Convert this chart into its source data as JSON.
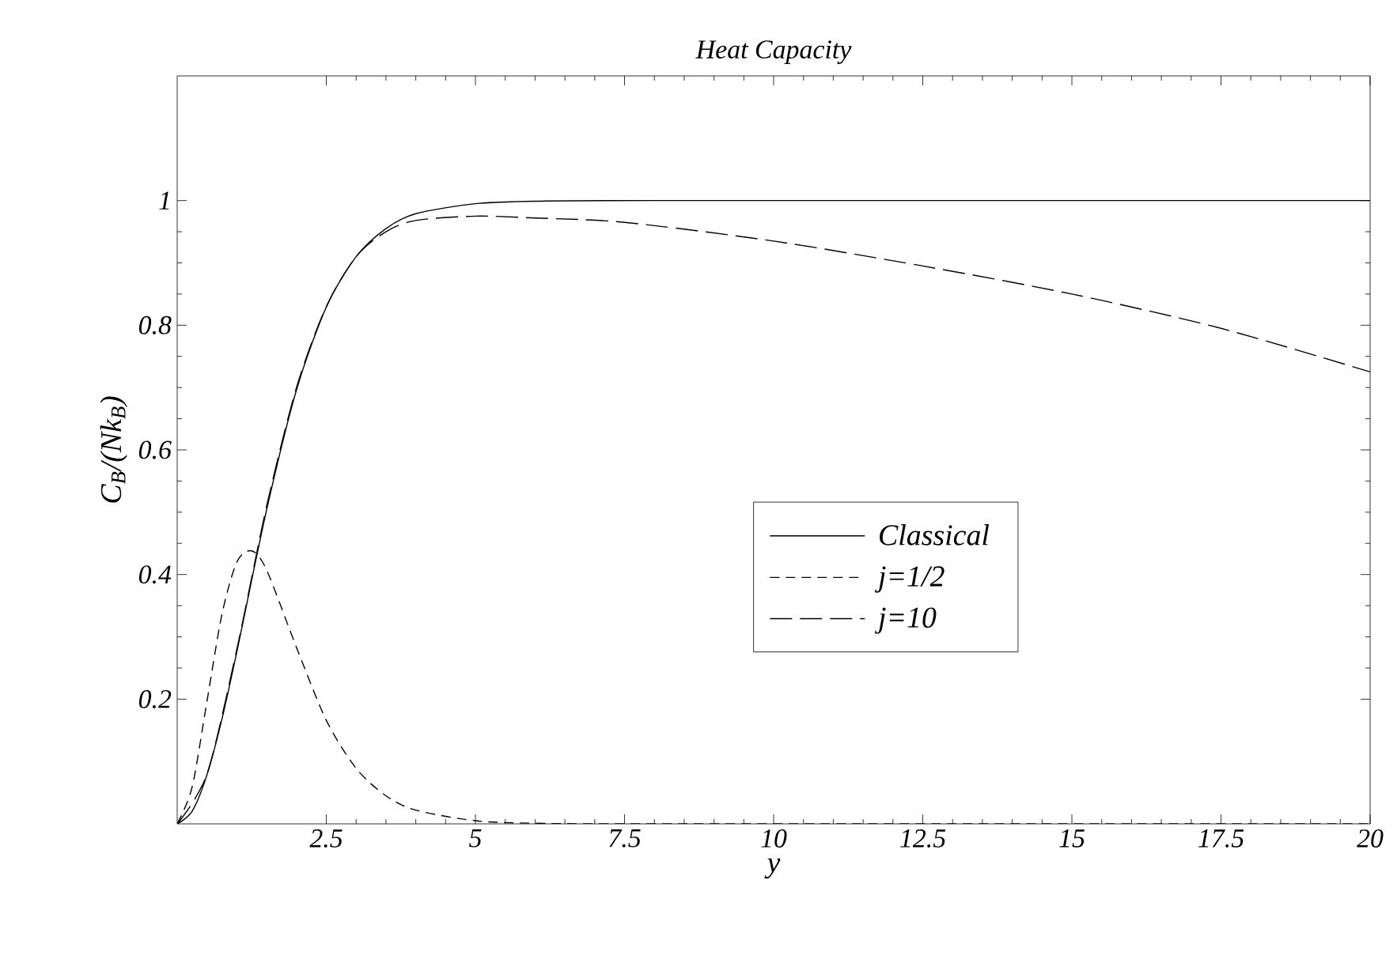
{
  "chart_data": {
    "type": "line",
    "title": "Heat Capacity",
    "xlabel": "y",
    "ylabel": "C$_{B}$/(Nk$_{B}$)",
    "xlim": [
      0,
      20
    ],
    "ylim": [
      0,
      1.2
    ],
    "xticks": [
      2.5,
      5,
      7.5,
      10,
      12.5,
      15,
      17.5,
      20
    ],
    "yticks": [
      0.2,
      0.4,
      0.6,
      0.8,
      1
    ],
    "grid": false,
    "legend": "right",
    "marker": "none",
    "series": [
      {
        "name": "Classical",
        "color": "#000000",
        "line_style": "solid",
        "x": [
          0,
          0.25,
          0.5,
          0.75,
          1,
          1.5,
          2,
          2.5,
          3,
          3.5,
          4,
          5,
          6,
          8,
          20
        ],
        "values": [
          0,
          0.02,
          0.079,
          0.168,
          0.276,
          0.504,
          0.696,
          0.829,
          0.91,
          0.955,
          0.979,
          0.995,
          0.999,
          1,
          1
        ]
      },
      {
        "name": "j=1/2",
        "color": "#000000",
        "line_style": "dashed",
        "x": [
          0,
          0.25,
          0.5,
          0.75,
          1,
          1.25,
          1.5,
          2,
          2.5,
          3,
          3.5,
          4,
          5,
          6,
          8,
          20
        ],
        "values": [
          0,
          0.059,
          0.197,
          0.336,
          0.42,
          0.438,
          0.407,
          0.283,
          0.166,
          0.089,
          0.045,
          0.022,
          0.005,
          0.001,
          0,
          0
        ]
      },
      {
        "name": "j=10",
        "color": "#000000",
        "line_style": "dashed",
        "x": [
          0,
          0.5,
          1,
          1.5,
          2,
          2.5,
          3,
          3.5,
          4,
          5,
          6,
          7.5,
          10,
          12.5,
          15,
          17.5,
          20
        ],
        "values": [
          0,
          0.08,
          0.28,
          0.51,
          0.7,
          0.83,
          0.91,
          0.95,
          0.968,
          0.975,
          0.972,
          0.965,
          0.935,
          0.895,
          0.85,
          0.795,
          0.725
        ]
      }
    ]
  }
}
